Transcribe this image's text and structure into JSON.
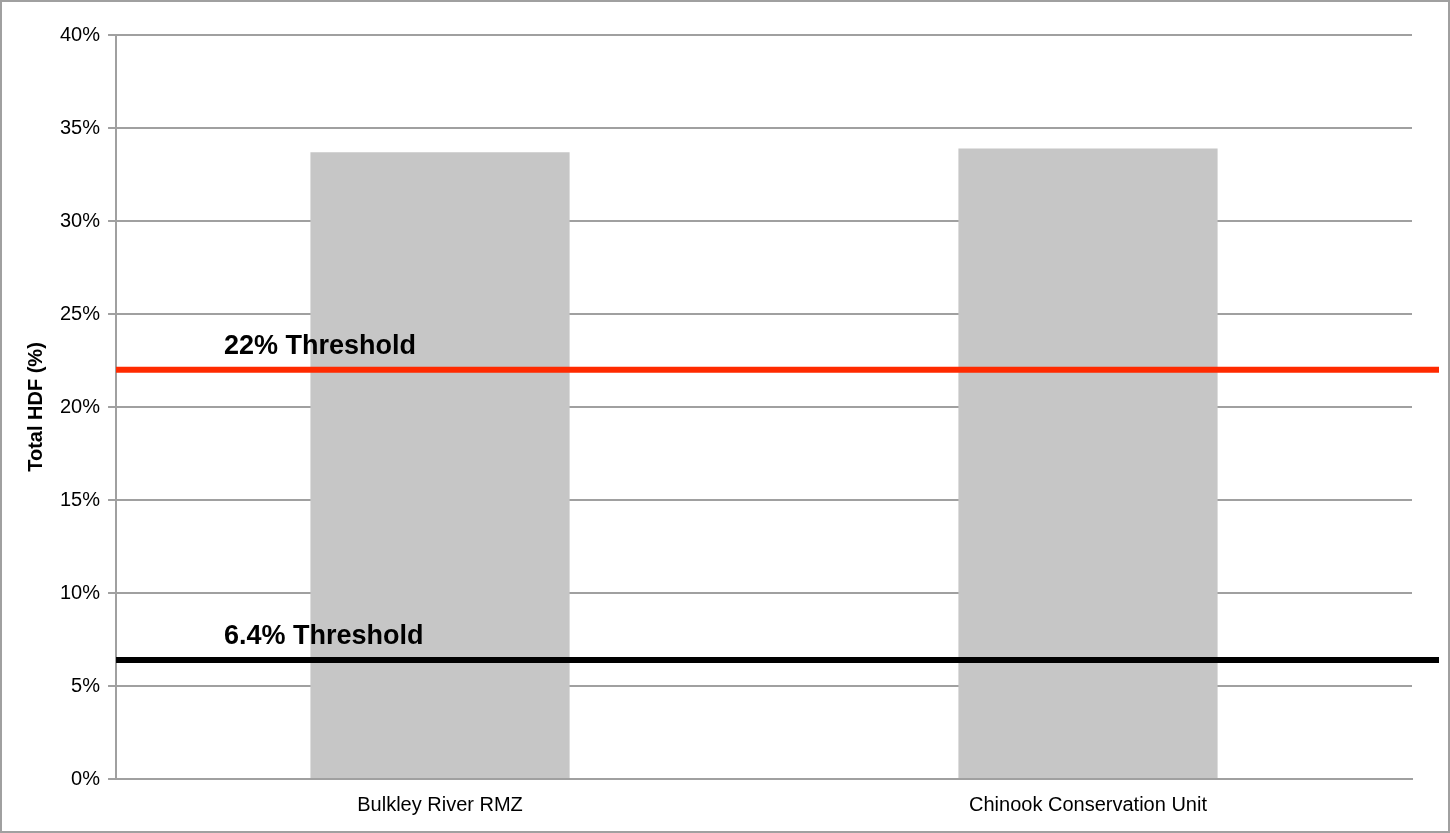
{
  "chart_data": {
    "type": "bar",
    "ylabel": "Total HDF (%)",
    "categories": [
      "Bulkley River RMZ",
      "Chinook Conservation Unit"
    ],
    "values": [
      33.7,
      33.9
    ],
    "color": "#c6c6c6",
    "ylim": [
      0,
      40
    ],
    "yticks": [
      {
        "value": 0,
        "label": "0%"
      },
      {
        "value": 5,
        "label": "5%"
      },
      {
        "value": 10,
        "label": "10%"
      },
      {
        "value": 15,
        "label": "15%"
      },
      {
        "value": 20,
        "label": "20%"
      },
      {
        "value": 25,
        "label": "25%"
      },
      {
        "value": 30,
        "label": "30%"
      },
      {
        "value": 35,
        "label": "35%"
      },
      {
        "value": 40,
        "label": "40%"
      }
    ],
    "grid": "y",
    "legend": false,
    "ref_lines": [
      {
        "axis": "y",
        "value": 22,
        "label": "22% Threshold",
        "color": "#ff2a00"
      },
      {
        "axis": "y",
        "value": 6.4,
        "label": "6.4% Threshold",
        "color": "#000000"
      }
    ]
  }
}
